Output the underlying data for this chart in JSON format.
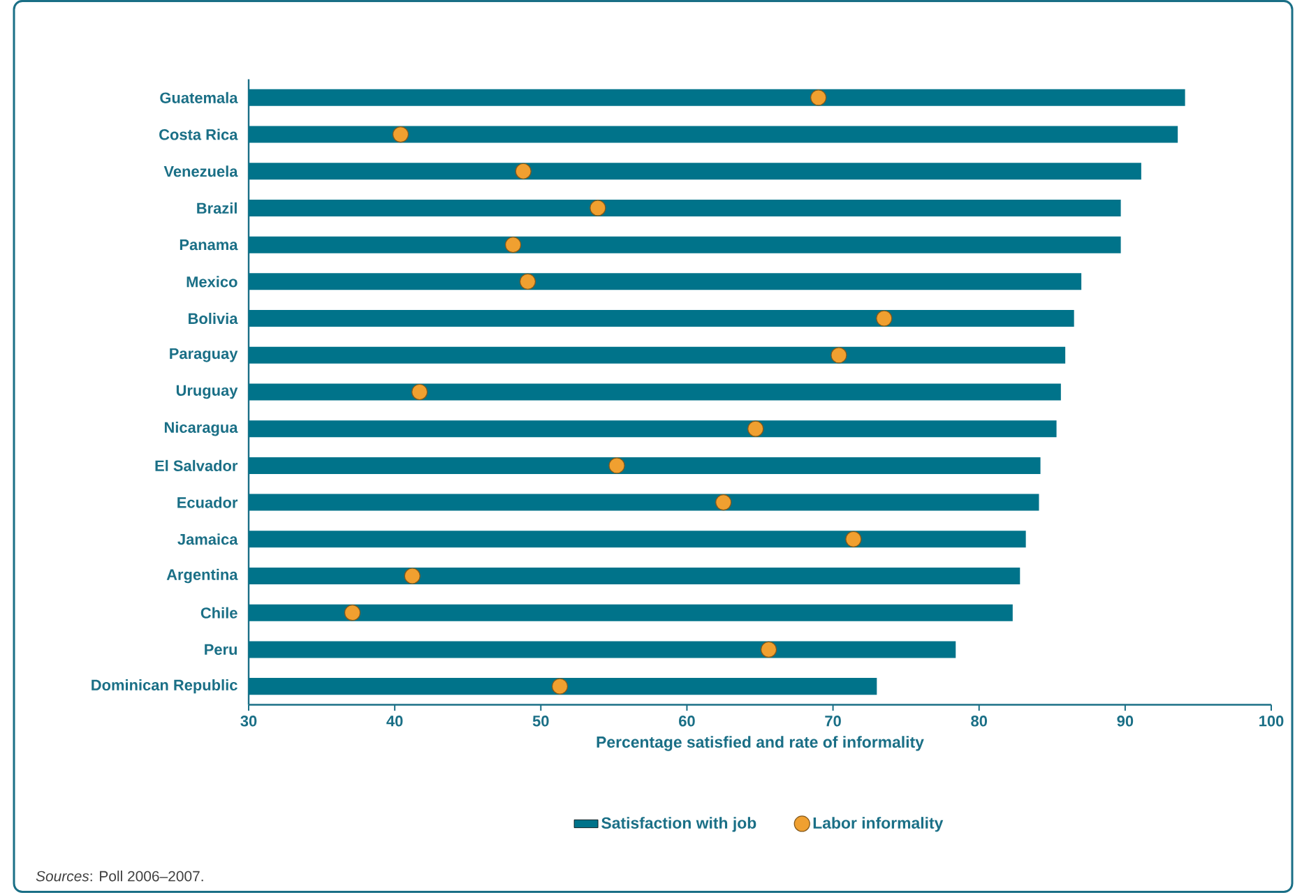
{
  "chart_data": {
    "type": "bar",
    "orientation": "horizontal",
    "xlabel": "Percentage satisfied and rate of informality",
    "categories": [
      "Guatemala",
      "Costa Rica",
      "Venezuela",
      "Brazil",
      "Panama",
      "Mexico",
      "Bolivia",
      "Paraguay",
      "Uruguay",
      "Nicaragua",
      "El Salvador",
      "Ecuador",
      "Jamaica",
      "Argentina",
      "Chile",
      "Peru",
      "Dominican Republic"
    ],
    "series": [
      {
        "name": "Satisfaction with job",
        "color": "#00738a",
        "values": [
          94.1,
          93.6,
          91.1,
          89.7,
          89.7,
          87.0,
          86.5,
          85.9,
          85.6,
          85.3,
          84.2,
          84.1,
          83.2,
          82.8,
          82.3,
          78.4,
          73.0
        ]
      },
      {
        "name": "Labor informality",
        "type": "scatter",
        "color": "#f0a030",
        "values": [
          69.0,
          40.4,
          48.8,
          53.9,
          48.1,
          49.1,
          73.5,
          70.4,
          41.7,
          64.7,
          55.2,
          62.5,
          71.4,
          41.2,
          37.1,
          65.6,
          51.3
        ]
      }
    ],
    "xlim": [
      30,
      100
    ],
    "xticks": [
      30,
      40,
      50,
      60,
      70,
      80,
      90,
      100
    ],
    "legend": "bottom",
    "marker": "circle",
    "grid": false,
    "annotations": [
      "*Sources*: Poll 2006–2007."
    ]
  }
}
